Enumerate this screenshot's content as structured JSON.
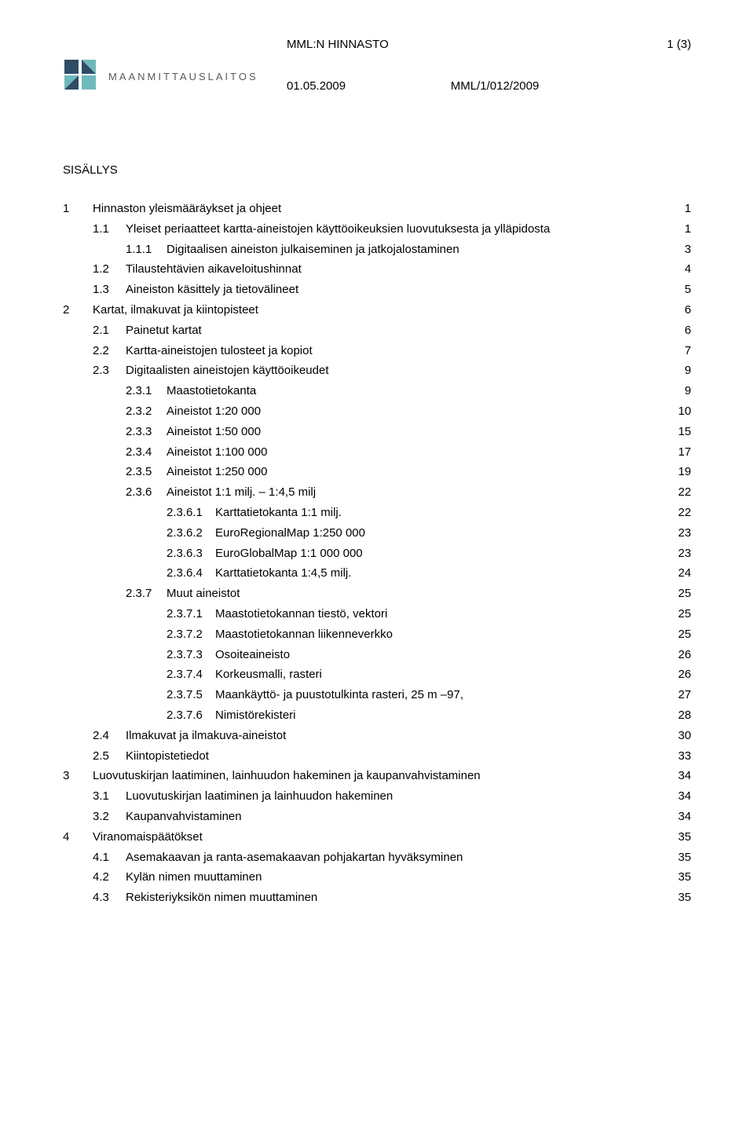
{
  "header": {
    "title": "MML:N HINNASTO",
    "page_label": "1 (3)",
    "date": "01.05.2009",
    "ref": "MML/1/012/2009"
  },
  "brand": {
    "name": "MAANMITTAUSLAITOS",
    "logo_colors": {
      "dark": "#2e4d67",
      "light": "#6fb9bc"
    }
  },
  "sisallys_label": "SISÄLLYS",
  "toc": [
    {
      "depth": 1,
      "num": "1",
      "text": "Hinnaston yleismääräykset ja ohjeet",
      "page": "1"
    },
    {
      "depth": 2,
      "num": "1.1",
      "text": "Yleiset periaatteet kartta-aineistojen käyttöoikeuksien luovutuksesta ja ylläpidosta",
      "page": "1"
    },
    {
      "depth": 3,
      "num": "1.1.1",
      "text": "Digitaalisen aineiston julkaiseminen ja jatkojalostaminen",
      "page": "3"
    },
    {
      "depth": 2,
      "num": "1.2",
      "text": "Tilaustehtävien aikaveloitushinnat",
      "page": "4"
    },
    {
      "depth": 2,
      "num": "1.3",
      "text": "Aineiston käsittely ja tietovälineet",
      "page": "5"
    },
    {
      "depth": 1,
      "num": "2",
      "text": "Kartat, ilmakuvat ja kiintopisteet",
      "page": "6"
    },
    {
      "depth": 2,
      "num": "2.1",
      "text": "Painetut kartat",
      "page": "6"
    },
    {
      "depth": 2,
      "num": "2.2",
      "text": "Kartta-aineistojen tulosteet ja kopiot",
      "page": "7"
    },
    {
      "depth": 2,
      "num": "2.3",
      "text": "Digitaalisten aineistojen käyttöoikeudet",
      "page": "9"
    },
    {
      "depth": 3,
      "num": "2.3.1",
      "text": "Maastotietokanta",
      "page": "9"
    },
    {
      "depth": 3,
      "num": "2.3.2",
      "text": "Aineistot 1:20 000",
      "page": "10"
    },
    {
      "depth": 3,
      "num": "2.3.3",
      "text": "Aineistot 1:50 000",
      "page": "15"
    },
    {
      "depth": 3,
      "num": "2.3.4",
      "text": "Aineistot 1:100 000",
      "page": "17"
    },
    {
      "depth": 3,
      "num": "2.3.5",
      "text": "Aineistot 1:250 000",
      "page": "19"
    },
    {
      "depth": 3,
      "num": "2.3.6",
      "text": "Aineistot 1:1 milj. – 1:4,5 milj",
      "page": "22"
    },
    {
      "depth": 4,
      "num": "2.3.6.1",
      "text": "Karttatietokanta 1:1 milj.",
      "page": "22"
    },
    {
      "depth": 4,
      "num": "2.3.6.2",
      "text": "EuroRegionalMap 1:250 000",
      "page": "23"
    },
    {
      "depth": 4,
      "num": "2.3.6.3",
      "text": "EuroGlobalMap 1:1 000 000",
      "page": "23"
    },
    {
      "depth": 4,
      "num": "2.3.6.4",
      "text": "Karttatietokanta 1:4,5 milj.",
      "page": "24"
    },
    {
      "depth": 3,
      "num": "2.3.7",
      "text": "Muut aineistot",
      "page": "25"
    },
    {
      "depth": 4,
      "num": "2.3.7.1",
      "text": "Maastotietokannan tiestö, vektori",
      "page": "25"
    },
    {
      "depth": 4,
      "num": "2.3.7.2",
      "text": "Maastotietokannan liikenneverkko",
      "page": "25"
    },
    {
      "depth": 4,
      "num": "2.3.7.3",
      "text": "Osoiteaineisto",
      "page": "26"
    },
    {
      "depth": 4,
      "num": "2.3.7.4",
      "text": "Korkeusmalli, rasteri",
      "page": "26"
    },
    {
      "depth": 4,
      "num": "2.3.7.5",
      "text": "Maankäyttö- ja puustotulkinta rasteri, 25 m –97,",
      "page": "27"
    },
    {
      "depth": 4,
      "num": "2.3.7.6",
      "text": "Nimistörekisteri",
      "page": "28"
    },
    {
      "depth": 2,
      "num": "2.4",
      "text": "Ilmakuvat ja ilmakuva-aineistot",
      "page": "30"
    },
    {
      "depth": 2,
      "num": "2.5",
      "text": "Kiintopistetiedot",
      "page": "33"
    },
    {
      "depth": 1,
      "num": "3",
      "text": "Luovutuskirjan laatiminen, lainhuudon hakeminen ja kaupanvahvistaminen",
      "page": "34"
    },
    {
      "depth": 2,
      "num": "3.1",
      "text": "Luovutuskirjan laatiminen ja lainhuudon hakeminen",
      "page": "34"
    },
    {
      "depth": 2,
      "num": "3.2",
      "text": "Kaupanvahvistaminen",
      "page": "34"
    },
    {
      "depth": 1,
      "num": "4",
      "text": "Viranomaispäätökset",
      "page": "35"
    },
    {
      "depth": 2,
      "num": "4.1",
      "text": "Asemakaavan ja ranta-asemakaavan pohjakartan hyväksyminen",
      "page": "35"
    },
    {
      "depth": 2,
      "num": "4.2",
      "text": "Kylän nimen muuttaminen",
      "page": "35"
    },
    {
      "depth": 2,
      "num": "4.3",
      "text": "Rekisteriyksikön nimen muuttaminen",
      "page": "35"
    }
  ]
}
